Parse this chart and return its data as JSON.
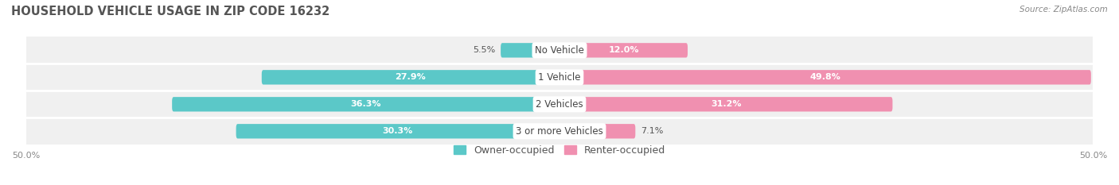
{
  "title": "HOUSEHOLD VEHICLE USAGE IN ZIP CODE 16232",
  "source": "Source: ZipAtlas.com",
  "categories": [
    "No Vehicle",
    "1 Vehicle",
    "2 Vehicles",
    "3 or more Vehicles"
  ],
  "owner_values": [
    5.5,
    27.9,
    36.3,
    30.3
  ],
  "renter_values": [
    12.0,
    49.8,
    31.2,
    7.1
  ],
  "owner_color": "#5BC8C8",
  "renter_color": "#F090B0",
  "row_bg_color": "#F0F0F0",
  "max_val": 50.0,
  "label_fontsize": 8.0,
  "cat_fontsize": 8.5,
  "title_fontsize": 10.5,
  "legend_fontsize": 9,
  "axis_label_fontsize": 8,
  "bar_height": 0.52,
  "figsize": [
    14.06,
    2.33
  ],
  "dpi": 100
}
